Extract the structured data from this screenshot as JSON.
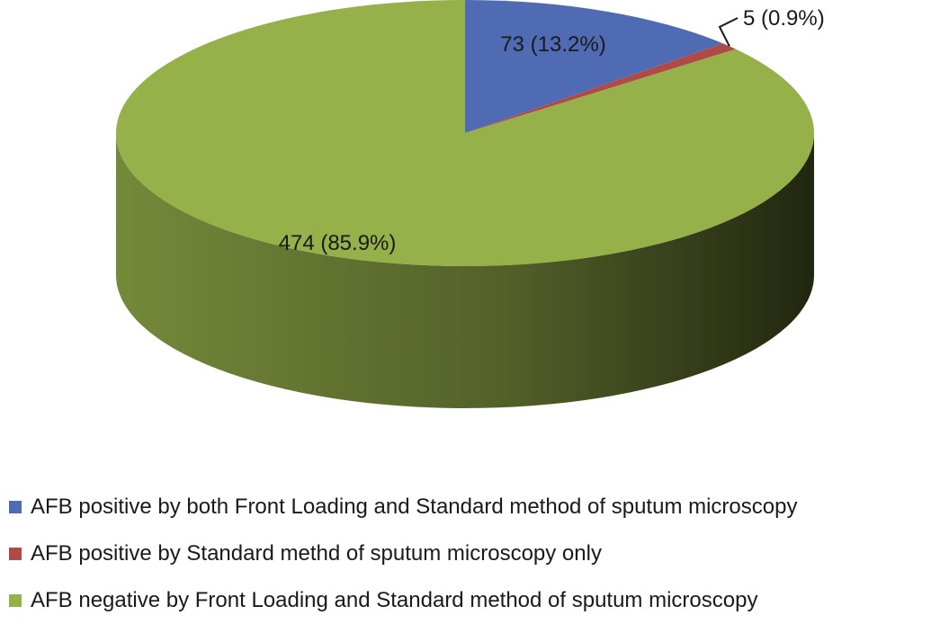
{
  "chart_data": {
    "type": "pie",
    "variant": "3d",
    "title": "",
    "slices": [
      {
        "label": "AFB positive by both Front Loading and Standard method of sputum microscopy",
        "value": 73,
        "percent": 13.2,
        "data_label": "73 (13.2%)",
        "color": "#4F6BB3"
      },
      {
        "label": "AFB positive by Standard methd of sputum microscopy only",
        "value": 5,
        "percent": 0.9,
        "data_label": "5 (0.9%)",
        "color": "#B04A47"
      },
      {
        "label": "AFB negative by Front Loading and Standard method of sputum microscopy",
        "value": 474,
        "percent": 85.9,
        "data_label": "474 (85.9%)",
        "color": "#96B04A"
      }
    ],
    "legend_position": "bottom"
  }
}
